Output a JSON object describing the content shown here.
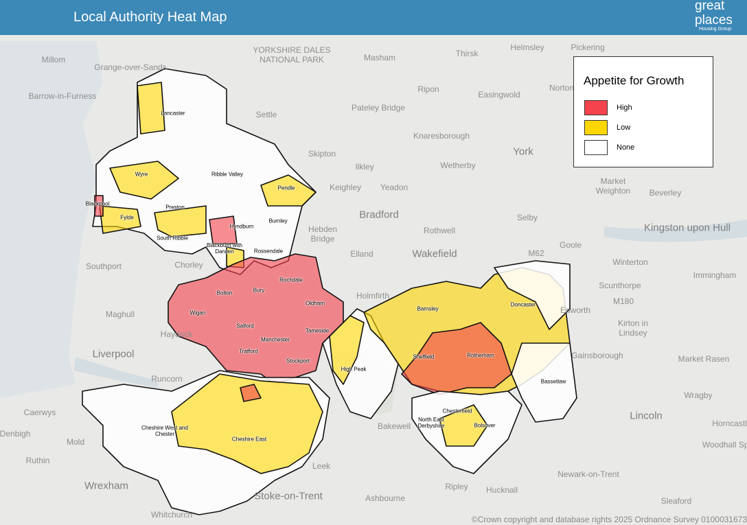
{
  "header": {
    "title": "Local Authority Heat Map",
    "logo": {
      "name": "great places",
      "tagline": "Housing Group"
    }
  },
  "legend": {
    "title": "Appetite for Growth",
    "items": [
      {
        "label": "High",
        "color": "#f4434c"
      },
      {
        "label": "Low",
        "color": "#ffd700"
      },
      {
        "label": "None",
        "color": "#ffffff"
      }
    ]
  },
  "authorities": [
    "Lancaster",
    "Wyre",
    "Ribble Valley",
    "Pendle",
    "Blackpool",
    "Preston",
    "Fylde",
    "Burnley",
    "Hyndburn",
    "South Ribble",
    "Blackburn with Darwen",
    "Rossendale",
    "Rochdale",
    "Bolton",
    "Bury",
    "Oldham",
    "Wigan",
    "Barnsley",
    "Doncaster",
    "Salford",
    "Tameside",
    "Manchester",
    "Trafford",
    "Sheffield",
    "Rotherham",
    "Stockport",
    "High Peak",
    "Bassetlaw",
    "Chesterfield",
    "North East Derbyshire",
    "Bolsover",
    "Cheshire West and Chester",
    "Cheshire East"
  ],
  "places": [
    "Millom",
    "Grange-over-Sands",
    "YORKSHIRE DALES NATIONAL PARK",
    "Masham",
    "Thirsk",
    "Helmsley",
    "Pickering",
    "Barrow-in-Furness",
    "Ripon",
    "Easingwold",
    "Norton",
    "Pateley Bridge",
    "Settle",
    "Knaresborough",
    "York",
    "Skipton",
    "Ilkley",
    "Wetherby",
    "Keighley",
    "Yeadon",
    "Bradford",
    "Market Weighton",
    "Beverley",
    "Selby",
    "Kingston upon Hull",
    "Hebden Bridge",
    "Rothwell",
    "Goole",
    "Elland",
    "Wakefield",
    "M62",
    "Southport",
    "Chorley",
    "Winterton",
    "Immingham",
    "Holmfirth",
    "Scunthorpe",
    "M180",
    "Kirton in Lindsey",
    "Maghull",
    "Haydock",
    "Liverpool",
    "Gainsborough",
    "Market Rasen",
    "Runcorn",
    "Wragby",
    "Caerwys",
    "Denbigh",
    "Mold",
    "Lincoln",
    "Horncastle",
    "Woodhall Spa",
    "Ruthin",
    "Wrexham",
    "Leek",
    "Newark-on-Trent",
    "Stoke-on-Trent",
    "Ashbourne",
    "Ripley",
    "Hucknall",
    "Sleaford",
    "Whitchurch",
    "Bakewell",
    "Epworth"
  ],
  "copyright": "©Crown copyright and database rights 2025  Ordnance Survey  0100031673"
}
